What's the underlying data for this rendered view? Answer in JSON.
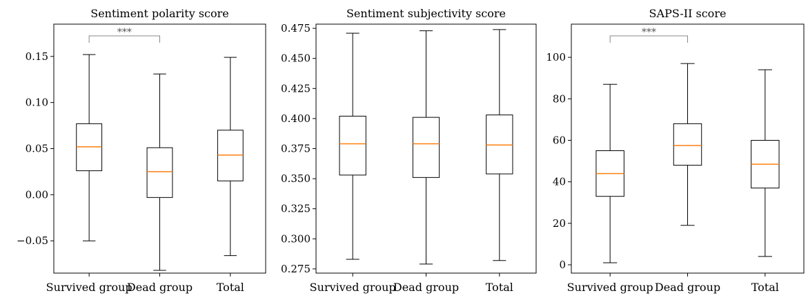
{
  "chart_data": [
    {
      "type": "box",
      "title": "Sentiment polarity score",
      "xlabel": "",
      "ylabel": "",
      "categories": [
        "Survived group",
        "Dead group",
        "Total"
      ],
      "ylim": [
        -0.085,
        0.185
      ],
      "yticks": [
        -0.05,
        0.0,
        0.05,
        0.1,
        0.15
      ],
      "ytick_labels": [
        "−0.05",
        "0.00",
        "0.05",
        "0.10",
        "0.15"
      ],
      "boxes": [
        {
          "whisker_low": -0.05,
          "q1": 0.026,
          "median": 0.052,
          "q3": 0.077,
          "whisker_high": 0.152
        },
        {
          "whisker_low": -0.082,
          "q1": -0.003,
          "median": 0.025,
          "q3": 0.051,
          "whisker_high": 0.131
        },
        {
          "whisker_low": -0.066,
          "q1": 0.015,
          "median": 0.043,
          "q3": 0.07,
          "whisker_high": 0.149
        }
      ],
      "significance": {
        "from": 0,
        "to": 1,
        "label": "***"
      },
      "median_color": "#ff7f0e",
      "grid": false
    },
    {
      "type": "box",
      "title": "Sentiment subjectivity score",
      "xlabel": "",
      "ylabel": "",
      "categories": [
        "Survived group",
        "Dead group",
        "Total"
      ],
      "ylim": [
        0.2715,
        0.4785
      ],
      "yticks": [
        0.275,
        0.3,
        0.325,
        0.35,
        0.375,
        0.4,
        0.425,
        0.45,
        0.475
      ],
      "ytick_labels": [
        "0.275",
        "0.300",
        "0.325",
        "0.350",
        "0.375",
        "0.400",
        "0.425",
        "0.450",
        "0.475"
      ],
      "boxes": [
        {
          "whisker_low": 0.283,
          "q1": 0.353,
          "median": 0.379,
          "q3": 0.402,
          "whisker_high": 0.471
        },
        {
          "whisker_low": 0.279,
          "q1": 0.351,
          "median": 0.379,
          "q3": 0.401,
          "whisker_high": 0.473
        },
        {
          "whisker_low": 0.282,
          "q1": 0.354,
          "median": 0.378,
          "q3": 0.403,
          "whisker_high": 0.474
        }
      ],
      "significance": null,
      "median_color": "#ff7f0e",
      "grid": false
    },
    {
      "type": "box",
      "title": "SAPS-II score",
      "xlabel": "",
      "ylabel": "",
      "categories": [
        "Survived group",
        "Dead group",
        "Total"
      ],
      "ylim": [
        -4,
        116
      ],
      "yticks": [
        0,
        20,
        40,
        60,
        80,
        100
      ],
      "ytick_labels": [
        "0",
        "20",
        "40",
        "60",
        "80",
        "100"
      ],
      "boxes": [
        {
          "whisker_low": 1,
          "q1": 33,
          "median": 44,
          "q3": 55,
          "whisker_high": 87
        },
        {
          "whisker_low": 19,
          "q1": 48,
          "median": 57.5,
          "q3": 68,
          "whisker_high": 97
        },
        {
          "whisker_low": 4,
          "q1": 37,
          "median": 48.5,
          "q3": 60,
          "whisker_high": 94
        }
      ],
      "significance": {
        "from": 0,
        "to": 1,
        "label": "***"
      },
      "median_color": "#ff7f0e",
      "grid": false
    }
  ]
}
